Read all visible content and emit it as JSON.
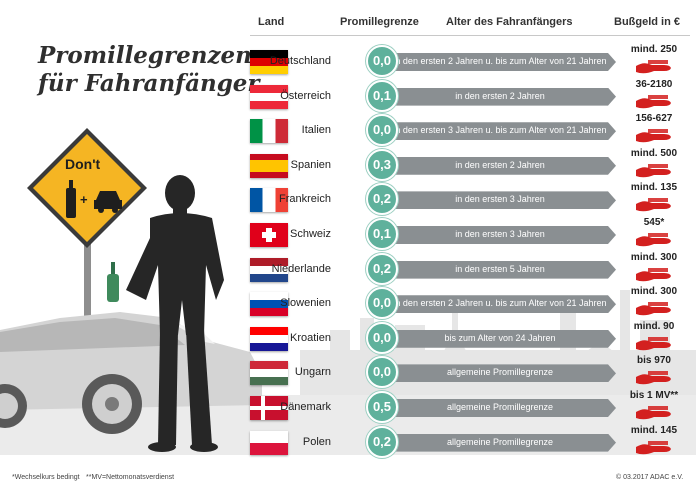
{
  "title": {
    "line1": "Promillegrenzen",
    "line2": "für Fahranfänger"
  },
  "headers": {
    "land": "Land",
    "promille": "Promillegrenze",
    "alter": "Alter des Fahranfängers",
    "bussgeld": "Bußgeld in €"
  },
  "sign": {
    "text": "Don't",
    "plus": "+"
  },
  "rows": [
    {
      "country": "Deutschland",
      "promille": "0,0",
      "alter": "in den ersten 2 Jahren u. bis zum Alter von 21 Jahren",
      "fine": "mind. 250",
      "flag": [
        "#000000",
        "#dd0000",
        "#ffce00"
      ]
    },
    {
      "country": "Österreich",
      "promille": "0,1",
      "alter": "in den ersten 2 Jahren",
      "fine": "36-2180",
      "flag": [
        "#ed2939",
        "#ffffff",
        "#ed2939"
      ]
    },
    {
      "country": "Italien",
      "promille": "0,0",
      "alter": "in den ersten 3 Jahren u. bis zum Alter von 21 Jahren",
      "fine": "156-627",
      "flag": [
        "#009246",
        "#ffffff",
        "#ce2b37"
      ]
    },
    {
      "country": "Spanien",
      "promille": "0,3",
      "alter": "in den ersten 2 Jahren",
      "fine": "mind. 500",
      "flag": [
        "#c60b1e",
        "#ffc400",
        "#c60b1e"
      ]
    },
    {
      "country": "Frankreich",
      "promille": "0,2",
      "alter": "in den ersten 3 Jahren",
      "fine": "mind. 135",
      "flag": [
        "#0055a4",
        "#ffffff",
        "#ef4135"
      ]
    },
    {
      "country": "Schweiz",
      "promille": "0,1",
      "alter": "in den ersten 3 Jahren",
      "fine": "545*",
      "flag": [
        "#e0001a",
        "#ffffff"
      ]
    },
    {
      "country": "Niederlande",
      "promille": "0,2",
      "alter": "in den ersten 5 Jahren",
      "fine": "mind. 300",
      "flag": [
        "#ae1c28",
        "#ffffff",
        "#21468b"
      ]
    },
    {
      "country": "Slowenien",
      "promille": "0,0",
      "alter": "in den ersten 2 Jahren u. bis zum Alter von 21 Jahren",
      "fine": "mind. 300",
      "flag": [
        "#ffffff",
        "#0052b4",
        "#d80027"
      ]
    },
    {
      "country": "Kroatien",
      "promille": "0,0",
      "alter": "bis zum Alter von 24 Jahren",
      "fine": "mind. 90",
      "flag": [
        "#ff0000",
        "#ffffff",
        "#171796"
      ]
    },
    {
      "country": "Ungarn",
      "promille": "0,0",
      "alter": "allgemeine Promillegrenze",
      "fine": "bis 970",
      "flag": [
        "#ce2939",
        "#ffffff",
        "#477050"
      ]
    },
    {
      "country": "Dänemark",
      "promille": "0,5",
      "alter": "allgemeine Promillegrenze",
      "fine": "bis 1 MV**",
      "flag": [
        "#c8102e",
        "#ffffff"
      ]
    },
    {
      "country": "Polen",
      "promille": "0,2",
      "alter": "allgemeine Promillegrenze",
      "fine": "mind. 145",
      "flag": [
        "#ffffff",
        "#dc143c"
      ]
    }
  ],
  "footer": {
    "note1": "*Wechselkurs bedingt",
    "note2": "**MV=Nettomonatsverdienst",
    "copyright": "© 03.2017 ADAC e.V."
  },
  "colors": {
    "circle": "#5fb19c",
    "arrow": "#8a8f92",
    "fine_icon": "#d3201f",
    "sign": "#f5b523"
  },
  "icons": {
    "fine": "hand-with-money-icon",
    "bottle": "wine-bottle-icon",
    "car": "car-icon"
  }
}
